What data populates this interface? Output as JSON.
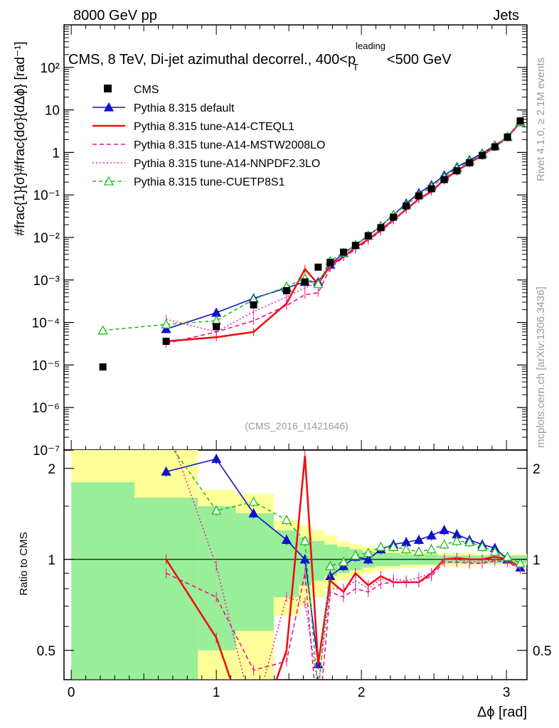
{
  "header": {
    "energy": "8000 GeV pp",
    "category": "Jets",
    "title_prefix": "CMS, 8 TeV, Di-jet azimuthal decorrel., 400<p",
    "title_sup": "leading",
    "title_sub": "T",
    "title_suffix": "<500 GeV"
  },
  "side_labels": {
    "rivet": "Rivet 4.1.0, ≥ 2.1M events",
    "mcplots": "mcplots.cern.ch [arXiv:1306.3436]"
  },
  "watermark": "(CMS_2016_I1421646)",
  "axes": {
    "main_ylabel": "#frac{1}{σ}#frac{dσ}{dΔϕ} [rad⁻¹]",
    "ratio_ylabel": "Ratio to CMS",
    "xlabel": "Δϕ [rad]"
  },
  "chart_data": {
    "type": "scatter",
    "xlim": [
      -0.05,
      3.14159
    ],
    "main_ylim": [
      1e-07,
      1000
    ],
    "ratio_ylim": [
      0.4,
      2.3
    ],
    "x_ticks": [
      0,
      1,
      2,
      3
    ],
    "main_y_ticks": [
      {
        "value": 100,
        "label": "10²"
      },
      {
        "value": 10,
        "label": "10"
      },
      {
        "value": 1,
        "label": "1"
      },
      {
        "value": 0.1,
        "label": "10⁻¹"
      },
      {
        "value": 0.01,
        "label": "10⁻²"
      },
      {
        "value": 0.001,
        "label": "10⁻³"
      },
      {
        "value": 0.0001,
        "label": "10⁻⁴"
      },
      {
        "value": 1e-05,
        "label": "10⁻⁵"
      },
      {
        "value": 1e-06,
        "label": "10⁻⁶"
      },
      {
        "value": 1e-07,
        "label": "10⁻⁷"
      }
    ],
    "ratio_y_ticks": [
      {
        "value": 0.5,
        "label": "0.5"
      },
      {
        "value": 1,
        "label": "1"
      },
      {
        "value": 2,
        "label": "2"
      }
    ],
    "cms": {
      "name": "CMS",
      "x": [
        0.218,
        0.654,
        1.0,
        1.257,
        1.484,
        1.611,
        1.702,
        1.785,
        1.877,
        1.959,
        2.047,
        2.134,
        2.221,
        2.309,
        2.396,
        2.483,
        2.571,
        2.658,
        2.745,
        2.833,
        2.92,
        3.007,
        3.095
      ],
      "y": [
        9e-06,
        3.6e-05,
        8e-05,
        0.00026,
        0.00056,
        0.0009,
        0.002,
        0.0026,
        0.0045,
        0.0065,
        0.011,
        0.017,
        0.03,
        0.055,
        0.095,
        0.14,
        0.23,
        0.37,
        0.57,
        0.85,
        1.35,
        2.3,
        5.5
      ],
      "band_edges": [
        0.0,
        0.436,
        0.873,
        1.134,
        1.396,
        1.571,
        1.658,
        1.745,
        1.833,
        1.92,
        2.007,
        2.094,
        2.181,
        2.269,
        2.356,
        2.443,
        2.531,
        2.618,
        2.705,
        2.793,
        2.88,
        2.967,
        3.054,
        3.142
      ],
      "band_stat": [
        0.8,
        0.6,
        0.5,
        0.42,
        0.25,
        0.18,
        0.15,
        0.12,
        0.1,
        0.08,
        0.06,
        0.05,
        0.05,
        0.04,
        0.04,
        0.04,
        0.03,
        0.03,
        0.03,
        0.03,
        0.03,
        0.03,
        0.03
      ],
      "band_total": [
        1.3,
        1.3,
        0.7,
        0.65,
        0.35,
        0.3,
        0.25,
        0.2,
        0.15,
        0.12,
        0.1,
        0.08,
        0.07,
        0.06,
        0.06,
        0.05,
        0.05,
        0.05,
        0.05,
        0.04,
        0.04,
        0.04,
        0.04
      ]
    },
    "series": [
      {
        "name": "Pythia 8.315 default",
        "color": "#1111cc",
        "dash": "",
        "marker": "triangle-filled",
        "x": [
          0.654,
          1.0,
          1.257,
          1.484,
          1.611,
          1.702,
          1.785,
          1.877,
          1.959,
          2.047,
          2.134,
          2.221,
          2.309,
          2.396,
          2.483,
          2.571,
          2.658,
          2.745,
          2.833,
          2.92,
          3.007,
          3.095
        ],
        "y": [
          7e-05,
          0.00017,
          0.00037,
          0.00065,
          0.0009,
          0.0009,
          0.0023,
          0.0043,
          0.0066,
          0.011,
          0.0185,
          0.034,
          0.063,
          0.11,
          0.17,
          0.29,
          0.45,
          0.66,
          0.95,
          1.47,
          2.3,
          5.2
        ],
        "ratio": [
          1.95,
          2.15,
          1.42,
          1.16,
          1.0,
          0.45,
          0.88,
          0.95,
          1.02,
          1.0,
          1.08,
          1.12,
          1.14,
          1.16,
          1.2,
          1.25,
          1.21,
          1.16,
          1.12,
          1.09,
          1.0,
          0.94
        ]
      },
      {
        "name": "Pythia 8.315 tune-A14-CTEQL1",
        "color": "#ee1111",
        "dash": "",
        "width": 2.6,
        "marker": "none",
        "x": [
          0.654,
          1.0,
          1.257,
          1.484,
          1.611,
          1.702,
          1.785,
          1.877,
          1.959,
          2.047,
          2.134,
          2.221,
          2.309,
          2.396,
          2.483,
          2.571,
          2.658,
          2.745,
          2.833,
          2.92,
          3.007,
          3.095
        ],
        "y": [
          3.6e-05,
          4.5e-05,
          6e-05,
          0.00028,
          0.0018,
          0.0008,
          0.0022,
          0.0035,
          0.0058,
          0.009,
          0.015,
          0.026,
          0.046,
          0.08,
          0.12,
          0.23,
          0.37,
          0.57,
          0.85,
          1.38,
          2.3,
          5.1
        ],
        "ratio": [
          1.0,
          0.55,
          0.24,
          0.5,
          2.2,
          0.45,
          0.85,
          0.78,
          0.9,
          0.82,
          0.88,
          0.84,
          0.84,
          0.84,
          0.9,
          1.0,
          1.01,
          1.0,
          1.0,
          1.02,
          1.0,
          0.94
        ]
      },
      {
        "name": "Pythia 8.315 tune-A14-MSTW2008LO",
        "color": "#ee1188",
        "dash": "6,4",
        "marker": "none",
        "x": [
          0.654,
          1.0,
          1.257,
          1.484,
          1.611,
          1.702,
          1.785,
          1.877,
          1.959,
          2.047,
          2.134,
          2.221,
          2.309,
          2.396,
          2.483,
          2.571,
          2.658,
          2.745,
          2.833,
          2.92,
          3.007,
          3.095
        ],
        "y": [
          3.2e-05,
          6e-05,
          0.00011,
          0.00025,
          0.00045,
          0.0005,
          0.0019,
          0.0034,
          0.0052,
          0.0085,
          0.014,
          0.025,
          0.046,
          0.08,
          0.12,
          0.22,
          0.36,
          0.55,
          0.83,
          1.34,
          2.2,
          5.1
        ],
        "ratio": [
          0.9,
          0.75,
          0.43,
          0.46,
          0.9,
          0.28,
          0.78,
          0.75,
          0.8,
          0.78,
          0.83,
          0.84,
          0.84,
          0.84,
          0.88,
          0.98,
          0.98,
          0.97,
          0.97,
          0.99,
          0.98,
          0.93
        ]
      },
      {
        "name": "Pythia 8.315 tune-A14-NNPDF2.3LO",
        "color": "#ee22aa",
        "dash": "2,3",
        "marker": "none",
        "x": [
          0.654,
          1.0,
          1.257,
          1.484,
          1.611,
          1.702,
          1.785,
          1.877,
          1.959,
          2.047,
          2.134,
          2.221,
          2.309,
          2.396,
          2.483,
          2.571,
          2.658,
          2.745,
          2.833,
          2.92,
          3.007,
          3.095
        ],
        "y": [
          0.00012,
          6e-05,
          0.00018,
          0.0004,
          0.00065,
          0.0009,
          0.0023,
          0.0036,
          0.0058,
          0.009,
          0.015,
          0.026,
          0.047,
          0.082,
          0.125,
          0.22,
          0.36,
          0.56,
          0.84,
          1.36,
          2.25,
          5.2
        ],
        "ratio": [
          2.8,
          0.95,
          0.3,
          0.75,
          0.72,
          0.38,
          0.8,
          0.8,
          0.85,
          0.8,
          0.86,
          0.86,
          0.85,
          0.87,
          0.9,
          1.0,
          1.0,
          0.98,
          0.98,
          1.0,
          0.99,
          0.94
        ]
      },
      {
        "name": "Pythia 8.315 tune-CUETP8S1",
        "color": "#22bb22",
        "dash": "5,4",
        "marker": "triangle-open",
        "x": [
          0.218,
          0.654,
          1.0,
          1.257,
          1.484,
          1.611,
          1.702,
          1.785,
          1.877,
          1.959,
          2.047,
          2.134,
          2.221,
          2.309,
          2.396,
          2.483,
          2.571,
          2.658,
          2.745,
          2.833,
          2.92,
          3.007,
          3.095
        ],
        "y": [
          6.5e-05,
          9e-05,
          0.00011,
          0.00035,
          0.0007,
          0.0011,
          0.0008,
          0.0028,
          0.0044,
          0.0066,
          0.011,
          0.0185,
          0.034,
          0.058,
          0.1,
          0.155,
          0.26,
          0.42,
          0.62,
          0.92,
          1.43,
          2.35,
          5.3
        ],
        "ratio": [
          7.2,
          2.5,
          1.45,
          1.55,
          1.35,
          1.15,
          0.36,
          0.95,
          0.98,
          1.03,
          1.05,
          1.1,
          1.1,
          1.08,
          1.06,
          1.08,
          1.12,
          1.15,
          1.14,
          1.1,
          1.06,
          1.02,
          0.97
        ]
      }
    ]
  }
}
